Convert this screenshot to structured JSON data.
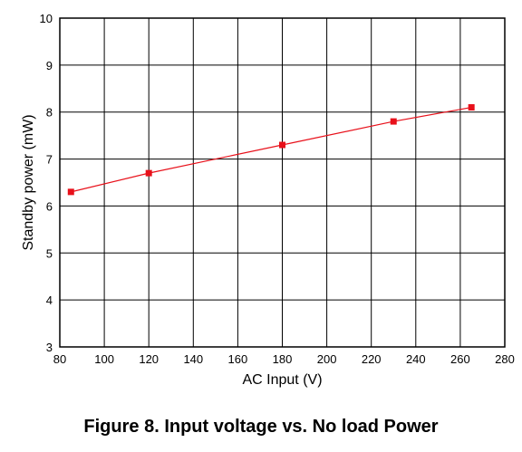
{
  "figure": {
    "caption": "Figure 8. Input voltage vs. No load Power"
  },
  "chart_data": {
    "type": "line",
    "xlabel": "AC Input (V)",
    "ylabel": "Standby power (mW)",
    "xlim": [
      80,
      280
    ],
    "ylim": [
      3,
      10
    ],
    "xticks": [
      80,
      100,
      120,
      140,
      160,
      180,
      200,
      220,
      240,
      260,
      280
    ],
    "yticks": [
      3,
      4,
      5,
      6,
      7,
      8,
      9,
      10
    ],
    "grid": true,
    "series": [
      {
        "color": "#e8101a",
        "marker": "square",
        "x": [
          85,
          120,
          180,
          230,
          265
        ],
        "y": [
          6.3,
          6.7,
          7.3,
          7.8,
          8.1
        ]
      }
    ]
  }
}
